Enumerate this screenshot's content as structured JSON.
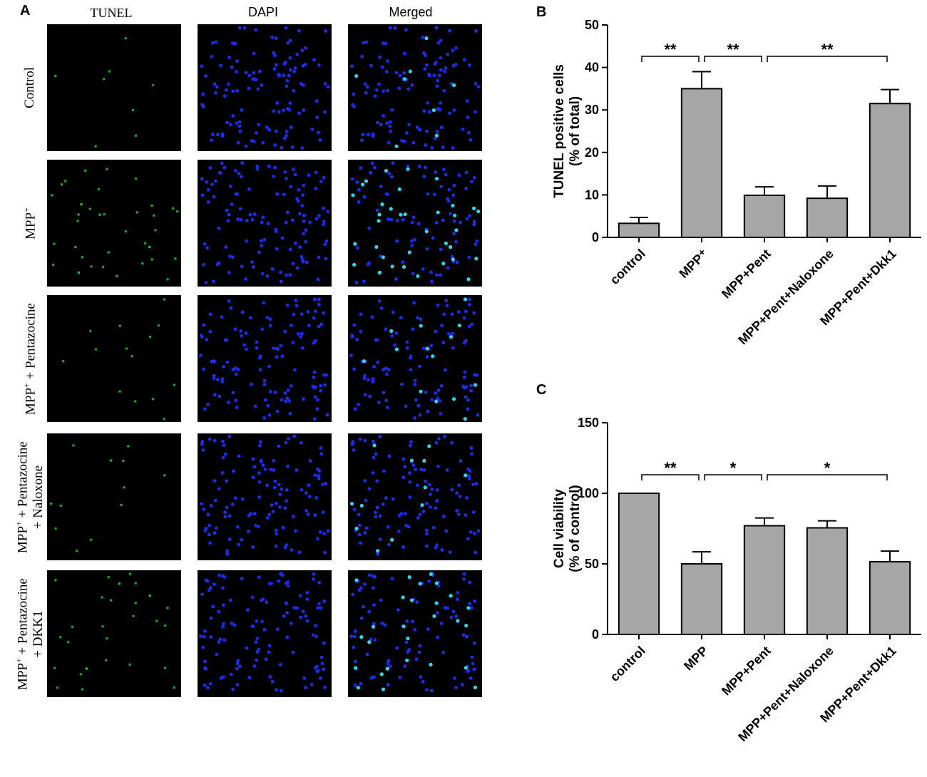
{
  "panel_a": {
    "letter": "A",
    "columns": [
      "TUNEL",
      "DAPI",
      "Merged"
    ],
    "rows": [
      {
        "label_main": "Control",
        "label_sup": "",
        "label_rest": "",
        "label_line2": ""
      },
      {
        "label_main": "MPP",
        "label_sup": "+",
        "label_rest": "",
        "label_line2": ""
      },
      {
        "label_main": "MPP",
        "label_sup": "+",
        "label_rest": " + Pentazocine",
        "label_line2": ""
      },
      {
        "label_main": "MPP",
        "label_sup": "+",
        "label_rest": " + Pentazocine",
        "label_line2": "+ Naloxone"
      },
      {
        "label_main": "MPP",
        "label_sup": "+",
        "label_rest": " + Pentazocine",
        "label_line2": "+ DKK1"
      }
    ],
    "colors": {
      "tunel": "#1fbf2a",
      "dapi": "#1b2ef0",
      "merged_positive": "#2fd6e8"
    }
  },
  "chart_data": [
    {
      "letter": "B",
      "type": "bar",
      "ylabel_line1": "TUNEL positive cells",
      "ylabel_line2": "(% of total)",
      "xlabel": "",
      "categories": [
        "control",
        "MPP⁺",
        "MPP+Pent",
        "MPP+Pent+Naloxone",
        "MPP+Pent+Dkk1"
      ],
      "values": [
        3.3,
        35.0,
        9.9,
        9.2,
        31.5
      ],
      "errors": [
        1.4,
        4.0,
        2.0,
        2.9,
        3.3
      ],
      "ylim": [
        0,
        50
      ],
      "yticks": [
        0,
        10,
        20,
        30,
        40,
        50
      ],
      "bar_color": "#a6a6a6",
      "significance": [
        {
          "from": 0,
          "to": 1,
          "label": "**"
        },
        {
          "from": 1,
          "to": 2,
          "label": "**"
        },
        {
          "from": 2,
          "to": 4,
          "label": "**"
        }
      ]
    },
    {
      "letter": "C",
      "type": "bar",
      "ylabel_line1": "Cell viability",
      "ylabel_line2": "(% of control)",
      "xlabel": "",
      "categories": [
        "control",
        "MPP",
        "MPP+Pent",
        "MPP+Pent+Naloxone",
        "MPP+Pent+Dkk1"
      ],
      "values": [
        100,
        50,
        77,
        75.5,
        51.5
      ],
      "errors": [
        0,
        8.5,
        5.5,
        5.0,
        7.5
      ],
      "ylim": [
        0,
        150
      ],
      "yticks": [
        0,
        50,
        100,
        150
      ],
      "bar_color": "#a6a6a6",
      "significance": [
        {
          "from": 0,
          "to": 1,
          "label": "**"
        },
        {
          "from": 1,
          "to": 2,
          "label": "*"
        },
        {
          "from": 2,
          "to": 4,
          "label": "*"
        }
      ]
    }
  ]
}
